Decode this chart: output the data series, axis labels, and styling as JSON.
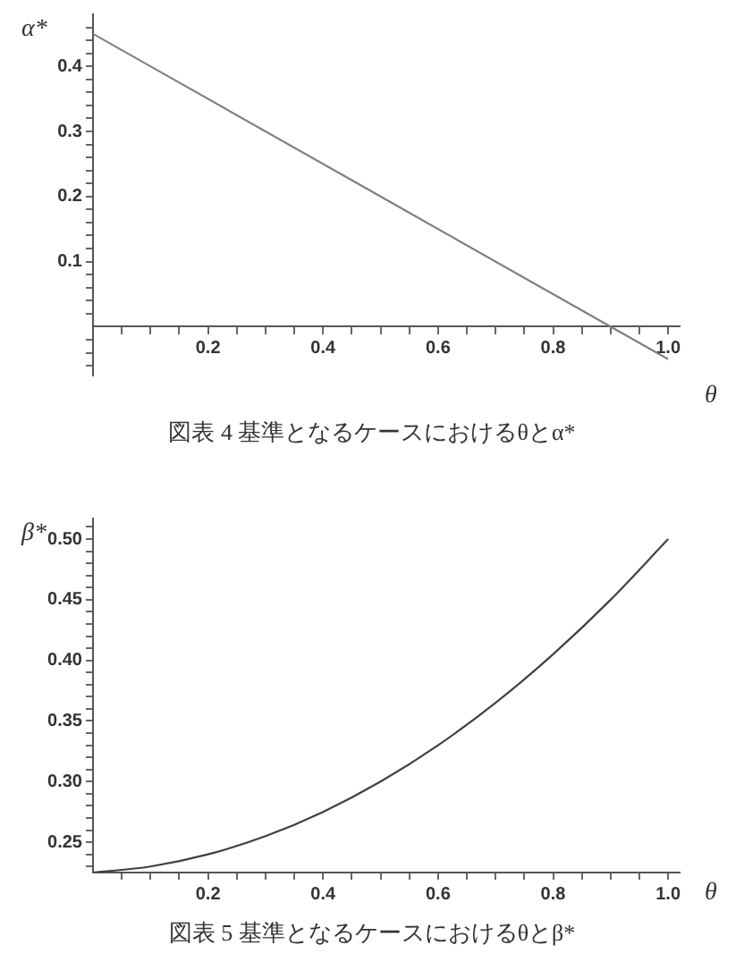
{
  "chart_data": [
    {
      "type": "line",
      "title": "図表 4 基準となるケースにおけるθとα*",
      "xlabel": "θ",
      "ylabel": "α*",
      "x": [
        0,
        0.5,
        1
      ],
      "values": [
        0.45,
        0.2,
        -0.05
      ],
      "color": "#808080",
      "xlim": [
        0,
        1.02
      ],
      "ylim": [
        -0.075,
        0.48
      ],
      "xticks": [
        {
          "value": 0.05,
          "label": null
        },
        {
          "value": 0.1,
          "label": null
        },
        {
          "value": 0.15,
          "label": null
        },
        0.2,
        {
          "value": 0.25,
          "label": null
        },
        {
          "value": 0.3,
          "label": null
        },
        {
          "value": 0.35,
          "label": null
        },
        0.4,
        {
          "value": 0.45,
          "label": null
        },
        {
          "value": 0.5,
          "label": null
        },
        {
          "value": 0.55,
          "label": null
        },
        0.6,
        {
          "value": 0.65,
          "label": null
        },
        {
          "value": 0.7,
          "label": null
        },
        {
          "value": 0.75,
          "label": null
        },
        0.8,
        {
          "value": 0.85,
          "label": null
        },
        {
          "value": 0.9,
          "label": null
        },
        {
          "value": 0.95,
          "label": null
        },
        {
          "value": 1,
          "label": "1.0"
        }
      ],
      "yticks": [
        {
          "value": -0.06,
          "label": null
        },
        {
          "value": -0.04,
          "label": null
        },
        {
          "value": -0.02,
          "label": null
        },
        {
          "value": 0.02,
          "label": null
        },
        {
          "value": 0.04,
          "label": null
        },
        {
          "value": 0.06,
          "label": null
        },
        {
          "value": 0.08,
          "label": null
        },
        0.1,
        {
          "value": 0.12,
          "label": null
        },
        {
          "value": 0.14,
          "label": null
        },
        {
          "value": 0.16,
          "label": null
        },
        {
          "value": 0.18,
          "label": null
        },
        0.2,
        {
          "value": 0.22,
          "label": null
        },
        {
          "value": 0.24,
          "label": null
        },
        {
          "value": 0.26,
          "label": null
        },
        {
          "value": 0.28,
          "label": null
        },
        0.3,
        {
          "value": 0.32,
          "label": null
        },
        {
          "value": 0.34,
          "label": null
        },
        {
          "value": 0.36,
          "label": null
        },
        {
          "value": 0.38,
          "label": null
        },
        0.4,
        {
          "value": 0.42,
          "label": null
        },
        {
          "value": 0.44,
          "label": null
        },
        {
          "value": 0.46,
          "label": null
        }
      ]
    },
    {
      "type": "line",
      "title": "図表 5 基準となるケースにおけるθとβ*",
      "xlabel": "θ",
      "ylabel": "β*",
      "x": [
        0,
        0.1,
        0.2,
        0.3,
        0.4,
        0.5,
        0.6,
        0.7,
        0.8,
        0.9,
        1
      ],
      "values": [
        0.225,
        0.23,
        0.24,
        0.255,
        0.275,
        0.3,
        0.33,
        0.365,
        0.405,
        0.45,
        0.5
      ],
      "color": "#404040",
      "xlim": [
        0,
        1.02
      ],
      "ylim": [
        0.225,
        0.517
      ],
      "xticks": [
        {
          "value": 0.05,
          "label": null
        },
        {
          "value": 0.1,
          "label": null
        },
        {
          "value": 0.15,
          "label": null
        },
        0.2,
        {
          "value": 0.25,
          "label": null
        },
        {
          "value": 0.3,
          "label": null
        },
        {
          "value": 0.35,
          "label": null
        },
        0.4,
        {
          "value": 0.45,
          "label": null
        },
        {
          "value": 0.5,
          "label": null
        },
        {
          "value": 0.55,
          "label": null
        },
        0.6,
        {
          "value": 0.65,
          "label": null
        },
        {
          "value": 0.7,
          "label": null
        },
        {
          "value": 0.75,
          "label": null
        },
        0.8,
        {
          "value": 0.85,
          "label": null
        },
        {
          "value": 0.9,
          "label": null
        },
        {
          "value": 0.95,
          "label": null
        },
        {
          "value": 1,
          "label": "1.0"
        }
      ],
      "yticks": [
        {
          "value": 0.23,
          "label": null
        },
        {
          "value": 0.24,
          "label": null
        },
        0.25,
        {
          "value": 0.26,
          "label": null
        },
        {
          "value": 0.27,
          "label": null
        },
        {
          "value": 0.28,
          "label": null
        },
        {
          "value": 0.29,
          "label": null
        },
        {
          "value": 0.3,
          "label": "0.30"
        },
        {
          "value": 0.31,
          "label": null
        },
        {
          "value": 0.32,
          "label": null
        },
        {
          "value": 0.33,
          "label": null
        },
        {
          "value": 0.34,
          "label": null
        },
        0.35,
        {
          "value": 0.36,
          "label": null
        },
        {
          "value": 0.37,
          "label": null
        },
        {
          "value": 0.38,
          "label": null
        },
        {
          "value": 0.39,
          "label": null
        },
        {
          "value": 0.4,
          "label": "0.40"
        },
        {
          "value": 0.41,
          "label": null
        },
        {
          "value": 0.42,
          "label": null
        },
        {
          "value": 0.43,
          "label": null
        },
        {
          "value": 0.44,
          "label": null
        },
        0.45,
        {
          "value": 0.46,
          "label": null
        },
        {
          "value": 0.47,
          "label": null
        },
        {
          "value": 0.48,
          "label": null
        },
        {
          "value": 0.49,
          "label": null
        },
        {
          "value": 0.5,
          "label": "0.50"
        },
        {
          "value": 0.51,
          "label": null
        }
      ]
    }
  ]
}
